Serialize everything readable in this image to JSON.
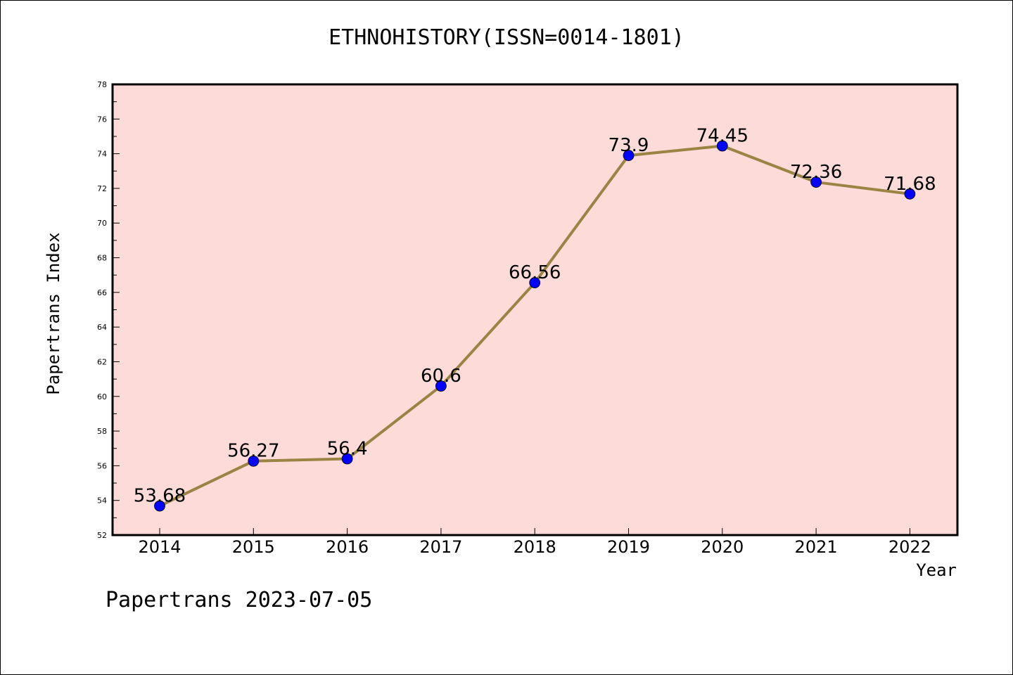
{
  "title": "ETHNOHISTORY(ISSN=0014-1801)",
  "footer": "Papertrans 2023-07-05",
  "chart_data": {
    "type": "line",
    "title": "ETHNOHISTORY(ISSN=0014-1801)",
    "xlabel": "Year",
    "ylabel": "Papertrans Index",
    "categories": [
      "2014",
      "2015",
      "2016",
      "2017",
      "2018",
      "2019",
      "2020",
      "2021",
      "2022"
    ],
    "values": [
      53.68,
      56.27,
      56.4,
      60.6,
      66.56,
      73.9,
      74.45,
      72.36,
      71.68
    ],
    "data_labels": [
      "53.68",
      "56.27",
      "56.4",
      "60.6",
      "66.56",
      "73.9",
      "74.45",
      "72.36",
      "71.68"
    ],
    "ylim": [
      52,
      78
    ],
    "y_ticks": [
      "52",
      "54",
      "56",
      "58",
      "60",
      "62",
      "64",
      "66",
      "68",
      "70",
      "72",
      "74",
      "76",
      "78"
    ],
    "grid": false,
    "colors": {
      "plot_background": "#fddbd8",
      "line": "#9a8443",
      "marker": "#0000ff"
    }
  }
}
